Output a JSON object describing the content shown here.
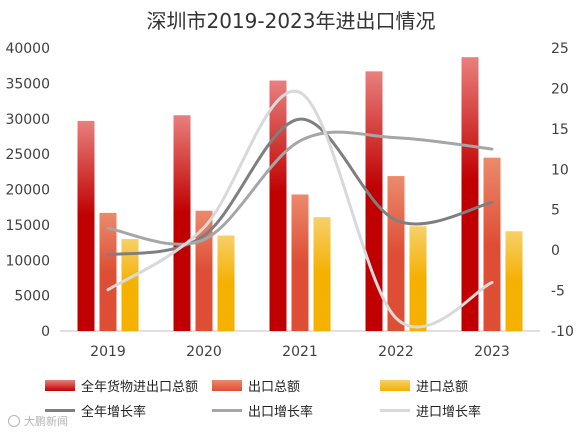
{
  "chart_data": {
    "type": "bar",
    "title": "深圳市2019-2023年进出口情况",
    "categories": [
      "2019",
      "2020",
      "2021",
      "2022",
      "2023"
    ],
    "series": [
      {
        "name": "全年货物进出口总额",
        "kind": "bar",
        "axis": "left",
        "color": "#c00000",
        "values": [
          29700,
          30500,
          35400,
          36700,
          38700
        ]
      },
      {
        "name": "出口总额",
        "kind": "bar",
        "axis": "left",
        "color": "#e05538",
        "values": [
          16700,
          17000,
          19300,
          21900,
          24500
        ]
      },
      {
        "name": "进口总额",
        "kind": "bar",
        "axis": "left",
        "color": "#f5b400",
        "values": [
          13000,
          13500,
          16100,
          14800,
          14100
        ]
      },
      {
        "name": "全年增长率",
        "kind": "line",
        "axis": "right",
        "color": "#7f7f7f",
        "values": [
          -0.6,
          1.8,
          16.2,
          3.7,
          5.9
        ]
      },
      {
        "name": "出口增长率",
        "kind": "line",
        "axis": "right",
        "color": "#a6a6a6",
        "values": [
          2.7,
          1.3,
          13.5,
          13.9,
          12.5
        ]
      },
      {
        "name": "进口增长率",
        "kind": "line",
        "axis": "right",
        "color": "#d9d9d9",
        "values": [
          -4.9,
          2.8,
          19.5,
          -8.4,
          -4.0
        ]
      }
    ],
    "yleft": {
      "ticks": [
        0,
        5000,
        10000,
        15000,
        20000,
        25000,
        30000,
        35000,
        40000
      ],
      "range": [
        0,
        40000
      ]
    },
    "yright": {
      "ticks": [
        -10,
        -5,
        0,
        5,
        10,
        15,
        20,
        25
      ],
      "range": [
        -10,
        25
      ]
    },
    "grid": false,
    "legend": "bottom"
  },
  "watermark": "大鹏新闻"
}
